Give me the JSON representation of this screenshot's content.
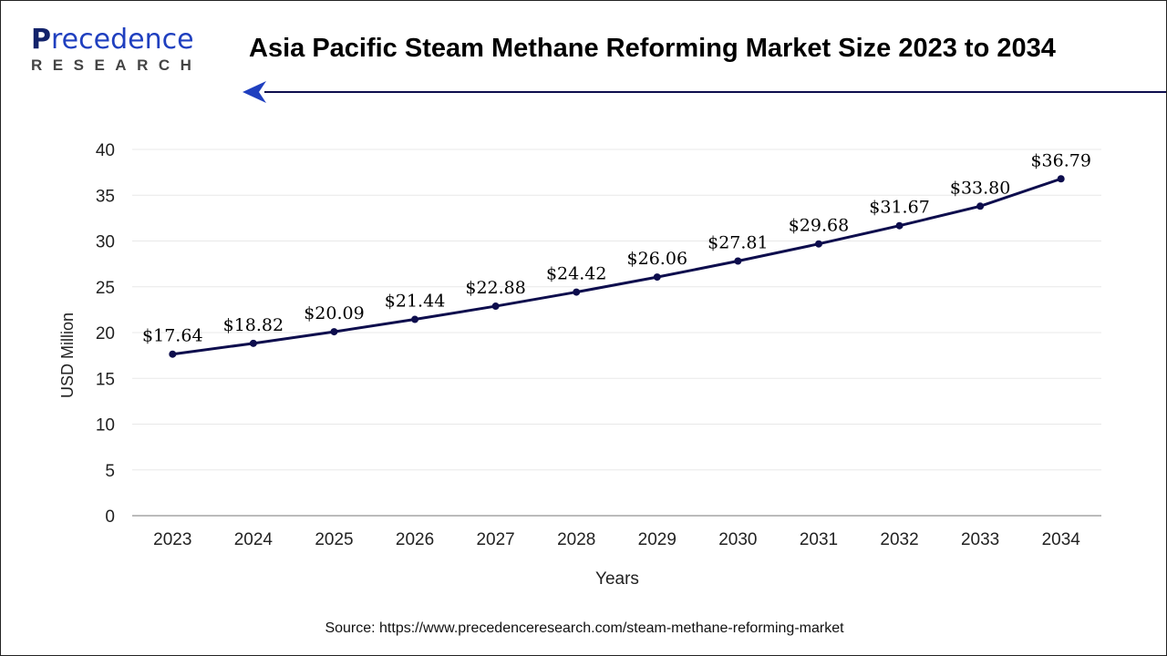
{
  "header": {
    "title": "Asia Pacific Steam Methane Reforming Market Size 2023 to 2034",
    "logo_main": "Precedence",
    "logo_sub": "RESEARCH"
  },
  "colors": {
    "line": "#0d0d4d",
    "grid": "#e8e8e8",
    "brand": "#1f3fbf"
  },
  "chart_data": {
    "type": "line",
    "title": "Asia Pacific Steam Methane Reforming Market Size 2023 to 2034",
    "xlabel": "Years",
    "ylabel": "USD Million",
    "categories": [
      "2023",
      "2024",
      "2025",
      "2026",
      "2027",
      "2028",
      "2029",
      "2030",
      "2031",
      "2032",
      "2033",
      "2034"
    ],
    "values": [
      17.64,
      18.82,
      20.09,
      21.44,
      22.88,
      24.42,
      26.06,
      27.81,
      29.68,
      31.67,
      33.8,
      36.79
    ],
    "data_labels": [
      "$17.64",
      "$18.82",
      "$20.09",
      "$21.44",
      "$22.88",
      "$24.42",
      "$26.06",
      "$27.81",
      "$29.68",
      "$31.67",
      "$33.80",
      "$36.79"
    ],
    "ylim": [
      0,
      40
    ],
    "yticks": [
      0,
      5,
      10,
      15,
      20,
      25,
      30,
      35,
      40
    ],
    "grid": true,
    "legend": "none"
  },
  "footer": {
    "source": "Source: https://www.precedenceresearch.com/steam-methane-reforming-market"
  }
}
